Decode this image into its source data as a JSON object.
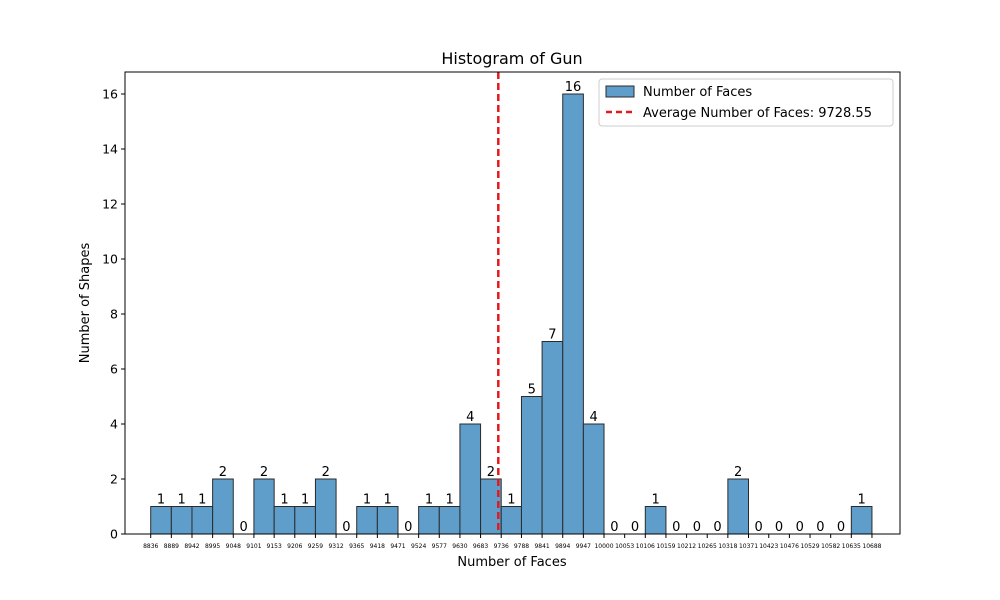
{
  "chart_data": {
    "type": "bar",
    "title": "Histogram of Gun",
    "xlabel": "Number of Faces",
    "ylabel": "Number of Shapes",
    "bin_edges": [
      8836,
      8889,
      8942,
      8995,
      9048,
      9101,
      9153,
      9206,
      9259,
      9312,
      9365,
      9418,
      9471,
      9524,
      9577,
      9630,
      9683,
      9736,
      9788,
      9841,
      9894,
      9947,
      10000,
      10053,
      10106,
      10159,
      10212,
      10265,
      10318,
      10371,
      10423,
      10476,
      10529,
      10582,
      10635,
      10688
    ],
    "x_tick_labels": [
      "8836",
      "8889",
      "8942",
      "8995",
      "9048",
      "9101",
      "9153",
      "9206",
      "9259",
      "9312",
      "9365",
      "9418",
      "9471",
      "9524",
      "9577",
      "9630",
      "9683",
      "9736",
      "9788",
      "9841",
      "9894",
      "9947",
      "10000",
      "10053",
      "10106",
      "10159",
      "10212",
      "10265",
      "10318",
      "10371",
      "10423",
      "10476",
      "10529",
      "10582",
      "10635",
      "10688"
    ],
    "values": [
      1,
      1,
      1,
      2,
      0,
      2,
      1,
      1,
      2,
      0,
      1,
      1,
      0,
      1,
      1,
      4,
      2,
      1,
      5,
      7,
      16,
      4,
      0,
      0,
      1,
      0,
      0,
      0,
      2,
      0,
      0,
      0,
      0,
      0,
      1
    ],
    "y_ticks": [
      0,
      2,
      4,
      6,
      8,
      10,
      12,
      14,
      16
    ],
    "ylim": [
      0,
      16.8
    ],
    "xlim": [
      8770,
      10760
    ],
    "average": 9728.55,
    "legend": {
      "position": "upper right",
      "bars_label": "Number of Faces",
      "average_label": "Average Number of Faces: 9728.55"
    },
    "colors": {
      "bar_fill": "#5f9ecb",
      "bar_edge": "#2b2b2b",
      "average_line": "#e31a1c"
    },
    "grid": false
  }
}
